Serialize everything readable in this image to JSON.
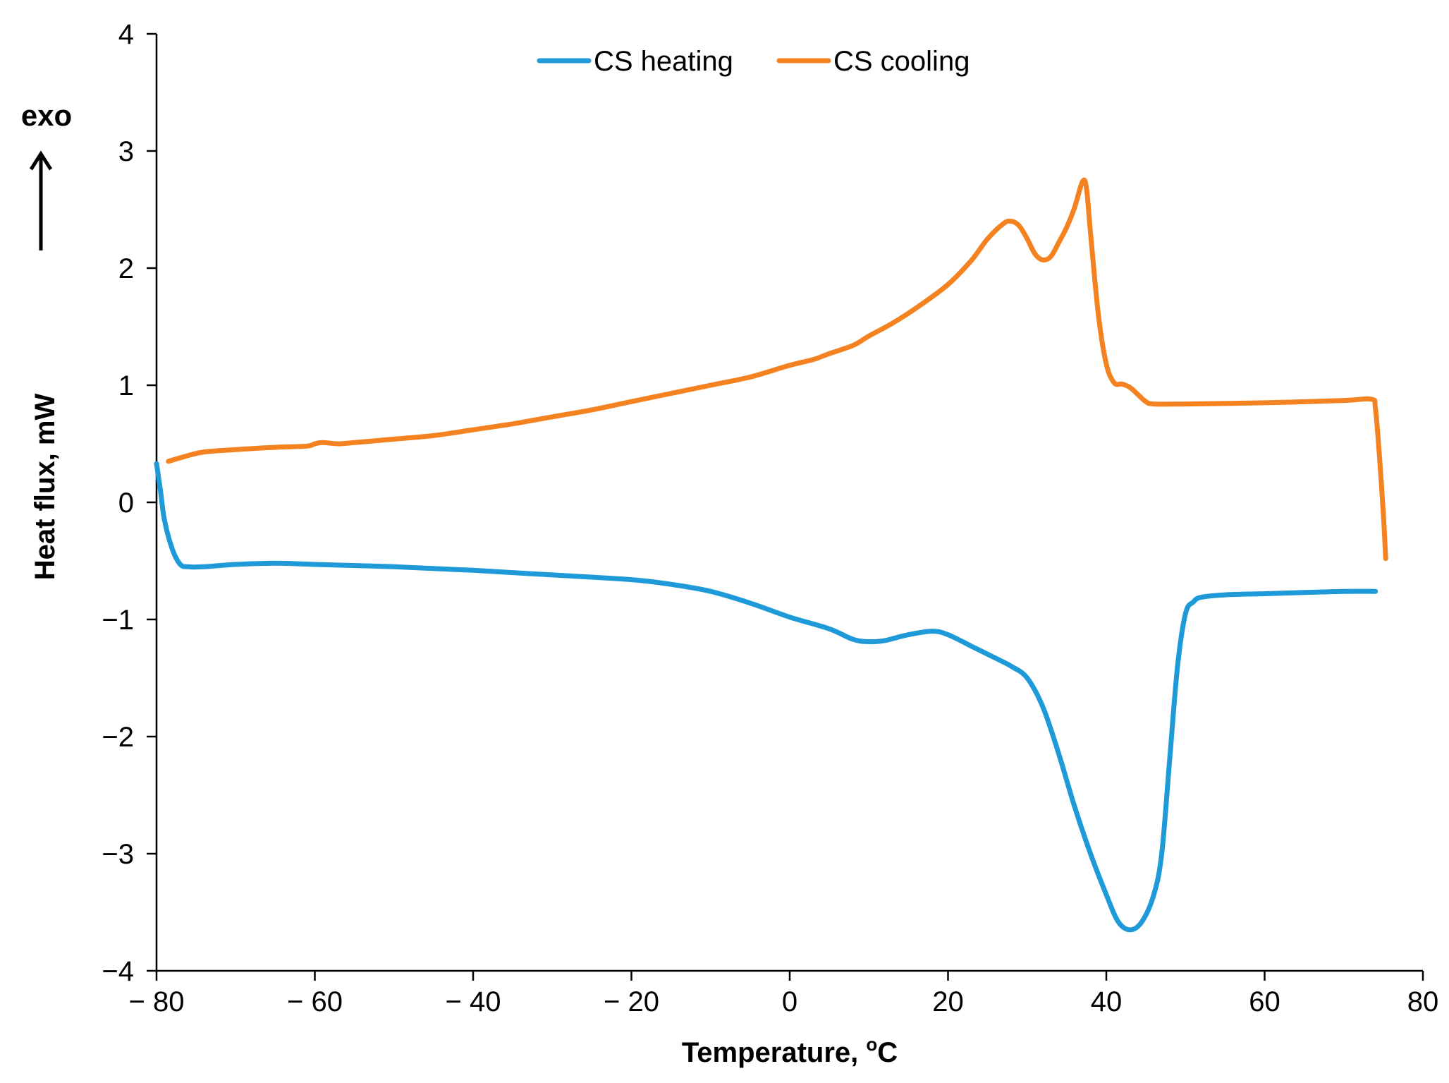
{
  "chart_data": {
    "type": "line",
    "xlabel": "Temperature, ",
    "xlabel_unit_sup": "o",
    "xlabel_unit": "C",
    "ylabel": "Heat  flux, mW",
    "annotation": "exo",
    "xlim": [
      -80,
      80
    ],
    "ylim": [
      -4,
      4
    ],
    "x_ticks": [
      -80,
      -60,
      -40,
      -20,
      0,
      20,
      40,
      60,
      80
    ],
    "y_ticks": [
      -4,
      -3,
      -2,
      -1,
      0,
      1,
      2,
      3,
      4
    ],
    "x_tick_labels": [
      "− 80",
      "− 60",
      "− 40",
      "− 20",
      "0",
      "20",
      "40",
      "60",
      "80"
    ],
    "y_tick_labels": [
      "−4",
      "−3",
      "−2",
      "−1",
      "0",
      "1",
      "2",
      "3",
      "4"
    ],
    "grid": false,
    "legend_position": "top-center",
    "series": [
      {
        "name": "CS heating",
        "color": "#1f9ad8",
        "points": [
          [
            -80,
            0.33
          ],
          [
            -79.5,
            0.1
          ],
          [
            -79,
            -0.15
          ],
          [
            -78,
            -0.4
          ],
          [
            -77,
            -0.53
          ],
          [
            -76,
            -0.55
          ],
          [
            -74,
            -0.55
          ],
          [
            -70,
            -0.53
          ],
          [
            -65,
            -0.52
          ],
          [
            -60,
            -0.53
          ],
          [
            -50,
            -0.55
          ],
          [
            -40,
            -0.58
          ],
          [
            -30,
            -0.62
          ],
          [
            -20,
            -0.66
          ],
          [
            -15,
            -0.7
          ],
          [
            -10,
            -0.76
          ],
          [
            -5,
            -0.86
          ],
          [
            0,
            -0.98
          ],
          [
            5,
            -1.08
          ],
          [
            8,
            -1.17
          ],
          [
            10,
            -1.19
          ],
          [
            12,
            -1.18
          ],
          [
            15,
            -1.13
          ],
          [
            18,
            -1.1
          ],
          [
            20,
            -1.13
          ],
          [
            23,
            -1.23
          ],
          [
            26,
            -1.33
          ],
          [
            28,
            -1.4
          ],
          [
            30,
            -1.5
          ],
          [
            32,
            -1.75
          ],
          [
            34,
            -2.15
          ],
          [
            36,
            -2.6
          ],
          [
            38,
            -3.0
          ],
          [
            40,
            -3.35
          ],
          [
            41.5,
            -3.58
          ],
          [
            43,
            -3.65
          ],
          [
            44.5,
            -3.58
          ],
          [
            46,
            -3.35
          ],
          [
            47,
            -3.0
          ],
          [
            48,
            -2.2
          ],
          [
            49,
            -1.4
          ],
          [
            50,
            -0.95
          ],
          [
            51,
            -0.85
          ],
          [
            52,
            -0.81
          ],
          [
            55,
            -0.79
          ],
          [
            60,
            -0.78
          ],
          [
            65,
            -0.77
          ],
          [
            70,
            -0.76
          ],
          [
            74,
            -0.76
          ]
        ]
      },
      {
        "name": "CS cooling",
        "color": "#f58220",
        "points": [
          [
            -78.5,
            0.35
          ],
          [
            -76,
            0.4
          ],
          [
            -74,
            0.43
          ],
          [
            -70,
            0.45
          ],
          [
            -65,
            0.47
          ],
          [
            -61,
            0.48
          ],
          [
            -60,
            0.5
          ],
          [
            -59,
            0.51
          ],
          [
            -57,
            0.5
          ],
          [
            -55,
            0.51
          ],
          [
            -50,
            0.54
          ],
          [
            -45,
            0.57
          ],
          [
            -40,
            0.62
          ],
          [
            -35,
            0.67
          ],
          [
            -30,
            0.73
          ],
          [
            -25,
            0.79
          ],
          [
            -20,
            0.86
          ],
          [
            -15,
            0.93
          ],
          [
            -10,
            1.0
          ],
          [
            -5,
            1.07
          ],
          [
            0,
            1.17
          ],
          [
            3,
            1.22
          ],
          [
            5,
            1.27
          ],
          [
            8,
            1.34
          ],
          [
            10,
            1.42
          ],
          [
            13,
            1.53
          ],
          [
            16,
            1.66
          ],
          [
            20,
            1.86
          ],
          [
            23,
            2.07
          ],
          [
            25,
            2.25
          ],
          [
            27,
            2.38
          ],
          [
            28,
            2.4
          ],
          [
            29,
            2.36
          ],
          [
            30,
            2.25
          ],
          [
            31,
            2.12
          ],
          [
            32,
            2.07
          ],
          [
            33,
            2.1
          ],
          [
            34,
            2.22
          ],
          [
            35,
            2.35
          ],
          [
            36,
            2.52
          ],
          [
            37,
            2.74
          ],
          [
            37.5,
            2.68
          ],
          [
            38,
            2.3
          ],
          [
            39,
            1.6
          ],
          [
            40,
            1.18
          ],
          [
            41,
            1.02
          ],
          [
            42,
            1.01
          ],
          [
            43,
            0.98
          ],
          [
            44,
            0.92
          ],
          [
            45,
            0.86
          ],
          [
            46,
            0.84
          ],
          [
            50,
            0.84
          ],
          [
            60,
            0.85
          ],
          [
            70,
            0.87
          ],
          [
            73.5,
            0.88
          ],
          [
            74,
            0.8
          ],
          [
            74.5,
            0.4
          ],
          [
            75,
            -0.1
          ],
          [
            75.3,
            -0.48
          ]
        ]
      }
    ]
  }
}
